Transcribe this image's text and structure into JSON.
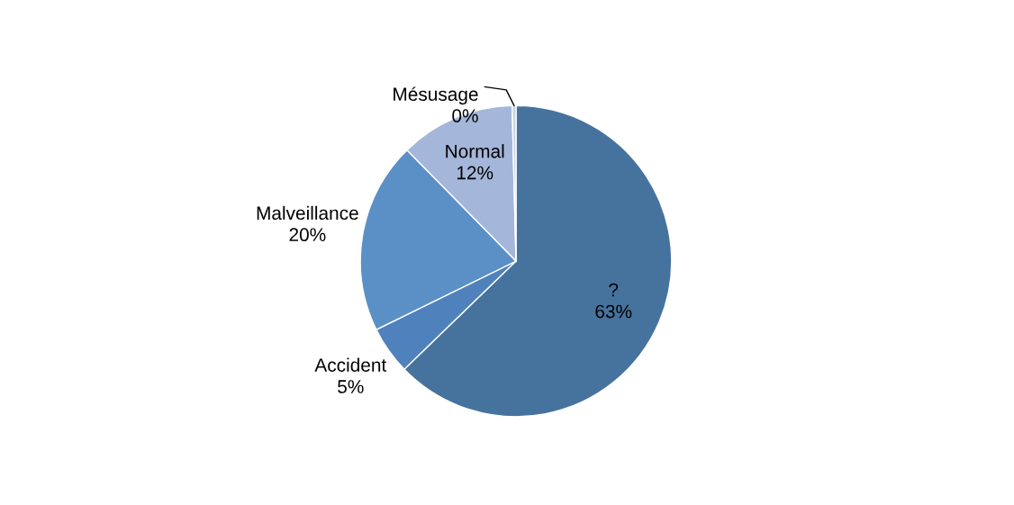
{
  "chart_data": {
    "type": "pie",
    "categories": [
      "?",
      "Accident",
      "Malveillance",
      "Normal",
      "Mésusage"
    ],
    "values": [
      63,
      5,
      20,
      12,
      0.4
    ],
    "value_labels": [
      "63%",
      "5%",
      "20%",
      "12%",
      "0%"
    ],
    "colors": [
      "#46739e",
      "#4f82bd",
      "#5b90c6",
      "#a4b6d9",
      "#c9d3e8"
    ]
  }
}
